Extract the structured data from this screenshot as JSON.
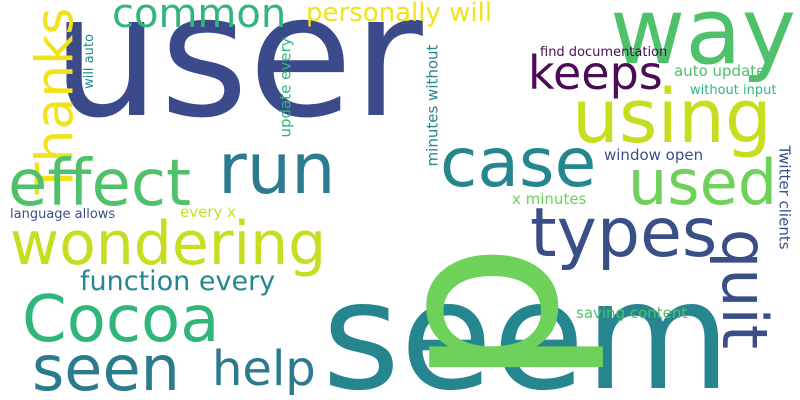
{
  "colors": {
    "indigo": "#3b4a8a",
    "teal": "#26868f",
    "green": "#4fc16b",
    "lime": "#c6de1f",
    "yellow": "#f0e31c",
    "purple": "#4b0c55",
    "emerald": "#30b57b",
    "darkteal": "#2b7a8e",
    "slate": "#3a4f87"
  },
  "words": {
    "user": "user",
    "seem": "seem",
    "p": "p",
    "way": "way",
    "using": "using",
    "keeps": "keeps",
    "common": "common",
    "personally_will": "personally will",
    "thanks": "Thanks",
    "effect": "effect",
    "run": "run",
    "case": "case",
    "used": "used",
    "wondering": "wondering",
    "types": "types",
    "quit": "quit",
    "cocoa": "Cocoa",
    "seen": "seen",
    "help": "help",
    "function_every": "function every",
    "window_open": "window open",
    "x_minutes": "x minutes",
    "every_x": "every x",
    "language_allows": "language allows",
    "saving_content": "saving content",
    "twitter_clients": "Twitter clients",
    "find_documentation": "find documentation",
    "auto_update": "auto update",
    "without_input": "without input",
    "will_auto": "will auto",
    "update_every": "update every",
    "minutes_without": "minutes without"
  }
}
